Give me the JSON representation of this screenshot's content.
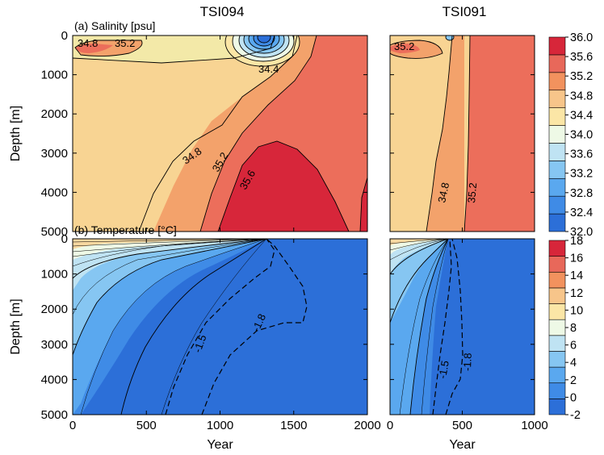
{
  "chart_data": [
    {
      "type": "heatmap",
      "panel_label": "(a) Salinity [psu]",
      "title": "TSI094",
      "xlim": [
        0,
        2000
      ],
      "ylim": [
        5000,
        0
      ],
      "ylabel": "Depth [m]",
      "y_ticks": [
        0,
        1000,
        2000,
        3000,
        4000,
        5000
      ],
      "contour_labels": [
        "34.8",
        "35.2",
        "34.4",
        "34.8",
        "35.2",
        "35.6"
      ]
    },
    {
      "type": "heatmap",
      "title": "TSI091",
      "xlim": [
        0,
        1000
      ],
      "ylim": [
        5000,
        0
      ],
      "contour_labels": [
        "35.2",
        "34.8",
        "35.2"
      ]
    },
    {
      "type": "heatmap",
      "panel_label": "(b) Temperature [°C]",
      "xlim": [
        0,
        2000
      ],
      "ylim": [
        5000,
        0
      ],
      "xlabel": "Year",
      "ylabel": "Depth [m]",
      "x_ticks": [
        0,
        500,
        1000,
        1500,
        2000
      ],
      "y_ticks": [
        0,
        1000,
        2000,
        3000,
        4000,
        5000
      ],
      "contour_labels": [
        "-1.5",
        "-1.8"
      ]
    },
    {
      "type": "heatmap",
      "xlim": [
        0,
        1000
      ],
      "ylim": [
        5000,
        0
      ],
      "xlabel": "Year",
      "x_ticks": [
        0,
        500,
        1000
      ],
      "contour_labels": [
        "-1.5",
        "-1.8"
      ]
    }
  ],
  "colorbars": {
    "salinity": {
      "levels": [
        32.0,
        32.4,
        32.8,
        33.2,
        33.6,
        34.0,
        34.4,
        34.8,
        35.2,
        35.6,
        36.0
      ],
      "tick_labels": [
        "36.0",
        "35.6",
        "35.2",
        "34.8",
        "34.4",
        "34.0",
        "33.6",
        "33.2",
        "32.8",
        "32.4",
        "32.0"
      ],
      "colors": [
        "#2c6fd8",
        "#3f8be6",
        "#5aa8ef",
        "#86c6f2",
        "#bfe3f3",
        "#eef9e6",
        "#fbe6a6",
        "#f7c58a",
        "#f2925e",
        "#e8685a",
        "#d7263a"
      ]
    },
    "temperature": {
      "levels": [
        -2,
        0,
        2,
        4,
        6,
        8,
        10,
        12,
        14,
        16,
        18
      ],
      "tick_labels": [
        "18",
        "16",
        "14",
        "12",
        "10",
        "8",
        "6",
        "4",
        "2",
        "0",
        "-2"
      ],
      "colors": [
        "#2c6fd8",
        "#3f8be6",
        "#5aa8ef",
        "#86c6f2",
        "#bfe3f3",
        "#eef9e6",
        "#fbe6a6",
        "#f7c58a",
        "#f2925e",
        "#e8685a",
        "#d7263a"
      ]
    }
  }
}
